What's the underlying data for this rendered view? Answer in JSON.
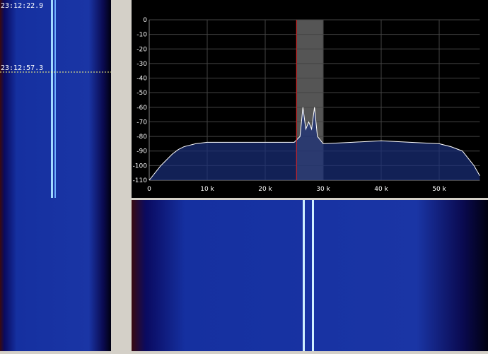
{
  "waterfall": {
    "timestamps": [
      "23:12:22.9",
      "23:12:57.3"
    ]
  },
  "chart_data": {
    "type": "line",
    "x": [
      0,
      1,
      2,
      3,
      4,
      5,
      6,
      8,
      10,
      15,
      20,
      25,
      26,
      26.5,
      27,
      27.5,
      28,
      28.5,
      29,
      30,
      35,
      40,
      45,
      50,
      52,
      54,
      55,
      56,
      57
    ],
    "series": [
      {
        "color": "#ffffff",
        "values": [
          -110,
          -105,
          -100,
          -96,
          -92,
          -89,
          -87,
          -85,
          -84,
          -84,
          -84,
          -84,
          -80,
          -60,
          -75,
          -70,
          -75,
          -60,
          -80,
          -85,
          -84,
          -83,
          -84,
          -85,
          -87,
          -90,
          -95,
          -100,
          -107
        ]
      }
    ],
    "xlim": [
      0,
      57
    ],
    "ylim": [
      -110,
      0
    ],
    "xticks": [
      0,
      {
        "value": 10,
        "label": "10 k"
      },
      {
        "value": 20,
        "label": "20 k"
      },
      {
        "value": 30,
        "label": "30 k"
      },
      {
        "value": 40,
        "label": "40 k"
      },
      {
        "value": 50,
        "label": "50 k"
      }
    ],
    "yticks": [
      0,
      -10,
      -20,
      -30,
      -40,
      -50,
      -60,
      -70,
      -80,
      -90,
      -100,
      -110
    ],
    "marker": 25.4,
    "band": [
      25.4,
      30
    ],
    "grid": true
  }
}
